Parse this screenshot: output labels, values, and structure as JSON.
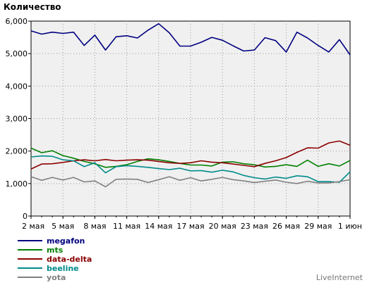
{
  "chart_data": {
    "type": "line",
    "title": "",
    "ylabel": "Количество",
    "xlabel": "",
    "ylim": [
      0,
      6000
    ],
    "yticks": [
      0,
      1000,
      2000,
      3000,
      4000,
      5000,
      6000
    ],
    "ytick_labels": [
      "0",
      "1,000",
      "2,000",
      "3,000",
      "4,000",
      "5,000",
      "6,000"
    ],
    "x": [
      1,
      2,
      3,
      4,
      5,
      6,
      7,
      8,
      9,
      10,
      11,
      12,
      13,
      14,
      15,
      16,
      17,
      18,
      19,
      20,
      21,
      22,
      23,
      24,
      25,
      26,
      27,
      28,
      29,
      30,
      31
    ],
    "xtick_positions": [
      1,
      4,
      7,
      10,
      13,
      16,
      19,
      22,
      25,
      28,
      31
    ],
    "xtick_labels": [
      "2 мая",
      "5 мая",
      "8 мая",
      "11 мая",
      "14 мая",
      "17 мая",
      "20 мая",
      "23 мая",
      "26 мая",
      "29 мая",
      "1 июн"
    ],
    "grid": true,
    "legend_position": "bottom-left",
    "watermark": "LiveInternet",
    "series": [
      {
        "name": "megafon",
        "color": "#000080",
        "values": [
          5700,
          5600,
          5660,
          5620,
          5660,
          5250,
          5570,
          5110,
          5520,
          5550,
          5480,
          5720,
          5920,
          5640,
          5230,
          5230,
          5350,
          5500,
          5410,
          5240,
          5080,
          5110,
          5490,
          5400,
          5050,
          5660,
          5480,
          5250,
          5050,
          5430,
          4960
        ]
      },
      {
        "name": "mts",
        "color": "#008000",
        "values": [
          2090,
          1950,
          2010,
          1860,
          1780,
          1680,
          1610,
          1500,
          1530,
          1580,
          1680,
          1760,
          1730,
          1680,
          1620,
          1570,
          1570,
          1540,
          1660,
          1670,
          1610,
          1580,
          1510,
          1530,
          1580,
          1530,
          1720,
          1530,
          1610,
          1540,
          1710
        ]
      },
      {
        "name": "data-delta",
        "color": "#8b0000",
        "values": [
          1450,
          1600,
          1610,
          1650,
          1700,
          1730,
          1700,
          1740,
          1700,
          1720,
          1730,
          1720,
          1680,
          1640,
          1620,
          1640,
          1700,
          1660,
          1640,
          1600,
          1560,
          1520,
          1620,
          1700,
          1800,
          1960,
          2100,
          2090,
          2250,
          2310,
          2180
        ]
      },
      {
        "name": "beeline",
        "color": "#008b8b",
        "values": [
          1820,
          1850,
          1840,
          1730,
          1700,
          1520,
          1640,
          1330,
          1520,
          1550,
          1530,
          1500,
          1460,
          1430,
          1470,
          1390,
          1400,
          1350,
          1410,
          1360,
          1250,
          1180,
          1140,
          1200,
          1160,
          1240,
          1210,
          1060,
          1060,
          1040,
          1360
        ]
      },
      {
        "name": "yota",
        "color": "#808080",
        "values": [
          1210,
          1100,
          1190,
          1110,
          1190,
          1050,
          1080,
          900,
          1130,
          1140,
          1130,
          1030,
          1120,
          1210,
          1100,
          1180,
          1080,
          1130,
          1190,
          1120,
          1080,
          1030,
          1070,
          1110,
          1040,
          1000,
          1070,
          1020,
          1020,
          1060,
          1120
        ]
      }
    ]
  }
}
